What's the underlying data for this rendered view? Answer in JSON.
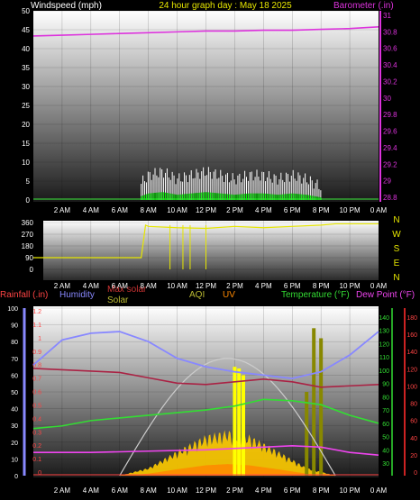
{
  "colors": {
    "wind": "#ffffff",
    "gust_fill": "#00ff00",
    "baro": "#dd33dd",
    "dir": "#e6e600",
    "rain": "#ff4444",
    "humidity": "#8888ff",
    "maxsolar": "#cc3333",
    "solar": "#bbbb33",
    "aqi": "#bbbb33",
    "uv": "#ff8800",
    "temperature": "#33dd33",
    "dewpoint": "#ee44ee",
    "solar_line": "#cccccc",
    "background": "#000000"
  },
  "top_panel": {
    "left_title": "Windspeed (mph)",
    "center_title": "24 hour graph day : May 18 2025",
    "right_title": "Barometer (.in)",
    "left_ticks": [
      "50",
      "45",
      "40",
      "35",
      "30",
      "25",
      "20",
      "15",
      "10",
      "5",
      "0"
    ],
    "right_ticks": [
      "31",
      "30.8",
      "30.6",
      "30.4",
      "30.2",
      "30",
      "29.8",
      "29.6",
      "29.4",
      "29.2",
      "29",
      "28.8"
    ]
  },
  "time_ticks": [
    "2 AM",
    "4 AM",
    "6 AM",
    "8 AM",
    "10 AM",
    "12 PM",
    "2 PM",
    "4 PM",
    "6 PM",
    "8 PM",
    "10 PM",
    "0 AM"
  ],
  "direction_panel": {
    "left_ticks": [
      "360",
      "270",
      "180",
      "90",
      "0"
    ],
    "compass": [
      "N",
      "W",
      "S",
      "E",
      "N"
    ]
  },
  "bottom_panel": {
    "labels": {
      "rain": "Rainfall (.in)",
      "humidity": "Humidity",
      "maxsolar": "Max solar",
      "solar": "Solar",
      "aqi": "AQI",
      "uv": "UV",
      "temperature": "Temperature (°F)",
      "dewpoint": "Dew Point (°F)"
    },
    "hum_ticks": [
      "100",
      "90",
      "80",
      "70",
      "60",
      "50",
      "40",
      "30",
      "20",
      "10",
      "0"
    ],
    "rain_ticks": [
      "1.2",
      "1.1",
      "1",
      "0.9",
      "0.8",
      "0.7",
      "0.6",
      "0.5",
      "0.4",
      "0.3",
      "0.2",
      "0.1",
      "0"
    ],
    "temp_ticks": [
      "140",
      "130",
      "120",
      "110",
      "100",
      "90",
      "80",
      "70",
      "60",
      "50",
      "40",
      "30"
    ],
    "dew_ticks": [
      "180",
      "160",
      "140",
      "120",
      "100",
      "80",
      "60",
      "40",
      "20",
      "0"
    ]
  },
  "chart_data": {
    "type": "line",
    "x_unit": "hour of day (0-24)",
    "barometer": {
      "name": "Barometer (.in)",
      "x": [
        0,
        2,
        4,
        6,
        8,
        10,
        12,
        14,
        16,
        18,
        20,
        22,
        24
      ],
      "y": [
        30.75,
        30.76,
        30.77,
        30.78,
        30.79,
        30.8,
        30.81,
        30.81,
        30.82,
        30.82,
        30.83,
        30.84,
        30.86
      ]
    },
    "windspeed": {
      "name": "Windspeed (mph)",
      "x": [
        7.5,
        8,
        9,
        10,
        11,
        12,
        13,
        14,
        15,
        16,
        17,
        18,
        19,
        20
      ],
      "y": [
        3,
        5,
        6,
        4,
        5,
        6,
        5,
        4,
        5,
        5,
        4,
        5,
        4,
        2
      ],
      "gust_peak": 9
    },
    "direction": {
      "x": [
        0,
        7.5,
        7.8,
        8,
        10,
        12,
        14,
        16,
        18,
        20,
        21,
        24
      ],
      "y": [
        90,
        90,
        340,
        330,
        320,
        315,
        330,
        320,
        330,
        340,
        350,
        350
      ]
    },
    "humidity": {
      "name": "Humidity",
      "x": [
        0,
        2,
        4,
        6,
        8,
        10,
        12,
        14,
        16,
        18,
        20,
        22,
        24
      ],
      "y": [
        66,
        81,
        85,
        86,
        80,
        70,
        65,
        62,
        60,
        58,
        62,
        72,
        86
      ]
    },
    "max_solar": {
      "name": "Max solar",
      "x": [
        0,
        6,
        8,
        10,
        12,
        14,
        16,
        18,
        20,
        24
      ],
      "y": [
        0.8,
        0.77,
        0.73,
        0.69,
        0.68,
        0.7,
        0.72,
        0.7,
        0.66,
        0.68
      ]
    },
    "temperature": {
      "name": "Temperature (°F)",
      "x": [
        0,
        2,
        4,
        6,
        8,
        10,
        12,
        14,
        16,
        18,
        20,
        22,
        24
      ],
      "y": [
        56,
        58,
        62,
        64,
        66,
        68,
        70,
        73,
        78,
        77,
        74,
        66,
        60
      ]
    },
    "dewpoint": {
      "name": "Dew Point (°F)",
      "x": [
        0,
        4,
        8,
        12,
        16,
        18,
        20,
        22,
        24
      ],
      "y": [
        38,
        38,
        39,
        40,
        42,
        43,
        42,
        38,
        36
      ]
    },
    "solar_curve": {
      "x": [
        6,
        8,
        10,
        12,
        13.5,
        15,
        17,
        19,
        21
      ],
      "y": [
        0,
        120,
        380,
        620,
        690,
        620,
        380,
        120,
        0
      ]
    },
    "solar_spikes": {
      "x": [
        14,
        14.3,
        14.6,
        19,
        19.5,
        20
      ],
      "y": [
        650,
        640,
        600,
        500,
        880,
        820
      ]
    }
  }
}
